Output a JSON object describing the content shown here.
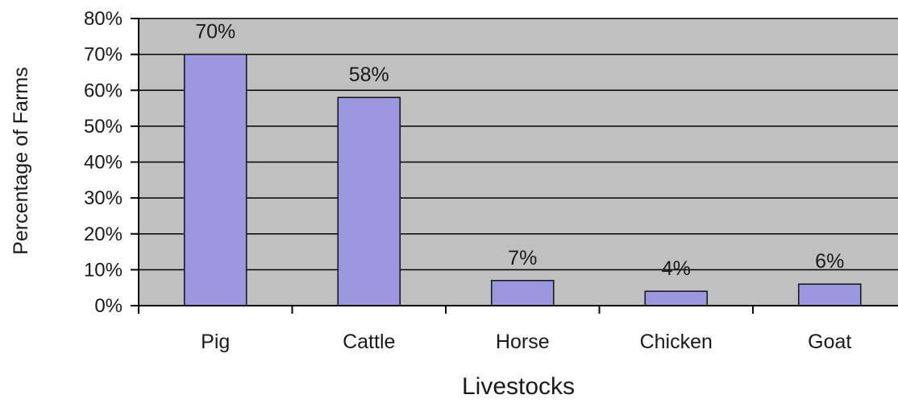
{
  "chart_data": {
    "type": "bar",
    "categories": [
      "Pig",
      "Cattle",
      "Horse",
      "Chicken",
      "Goat"
    ],
    "values": [
      70,
      58,
      7,
      4,
      6
    ],
    "data_labels": [
      "70%",
      "58%",
      "7%",
      "4%",
      "6%"
    ],
    "xlabel": "Livestocks",
    "ylabel": "Percentage of Farms",
    "ylim": [
      0,
      80
    ],
    "yticks": [
      0,
      10,
      20,
      30,
      40,
      50,
      60,
      70,
      80
    ],
    "ytick_labels": [
      "0%",
      "10%",
      "20%",
      "30%",
      "40%",
      "50%",
      "60%",
      "70%",
      "80%"
    ],
    "grid": true,
    "legend": "none",
    "colors": {
      "bar_fill": "#9b98e0",
      "bar_stroke": "#1a1a1a",
      "plot_background": "#c0c0c0",
      "gridline": "#000000",
      "axis": "#000000"
    }
  }
}
